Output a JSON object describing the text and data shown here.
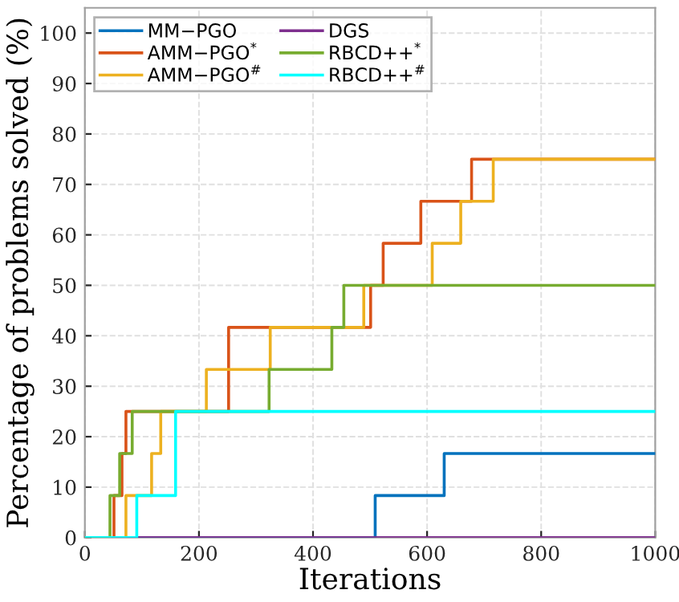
{
  "chart_data": {
    "type": "step",
    "xlabel": "Iterations",
    "ylabel": "Percentage of problems solved (%)",
    "xlim": [
      0,
      1000
    ],
    "ylim": [
      0,
      105
    ],
    "xticks": [
      0,
      200,
      400,
      600,
      800,
      1000
    ],
    "yticks": [
      0,
      10,
      20,
      30,
      40,
      50,
      60,
      70,
      80,
      90,
      100
    ],
    "grid": true,
    "legend": "top left",
    "line_style": "solid",
    "marker": "none",
    "series": [
      {
        "name": "MM−PGO",
        "color": "#0072bd",
        "x": [
          0,
          509,
          630,
          1000
        ],
        "values": [
          0,
          8.33,
          16.67,
          16.67
        ]
      },
      {
        "name": "AMM−PGO$^{*}$",
        "color": "#d95319",
        "x": [
          0,
          51,
          65,
          72,
          252,
          501,
          523,
          589,
          678,
          1000
        ],
        "values": [
          0,
          8.33,
          16.67,
          25,
          41.67,
          50,
          58.33,
          66.67,
          75,
          75
        ]
      },
      {
        "name": "AMM−PGO$^{#}$",
        "color": "#edb120",
        "x": [
          0,
          72,
          117,
          133,
          213,
          325,
          489,
          609,
          659,
          716,
          1000
        ],
        "values": [
          0,
          8.33,
          16.67,
          25,
          33.33,
          41.67,
          50,
          58.33,
          66.67,
          75,
          75
        ]
      },
      {
        "name": "DGS",
        "color": "#7e2f8e",
        "x": [
          0,
          1000
        ],
        "values": [
          0,
          0
        ]
      },
      {
        "name": "RBCD++$^{*}$",
        "color": "#77ac30",
        "x": [
          0,
          44,
          61,
          83,
          323,
          433,
          454,
          1000
        ],
        "values": [
          0,
          8.33,
          16.67,
          25,
          33.33,
          41.67,
          50,
          50
        ]
      },
      {
        "name": "RBCD++$^{#}$",
        "color": "#00ffff",
        "x": [
          0,
          91,
          159,
          1000
        ],
        "values": [
          0,
          8.33,
          25,
          25
        ]
      }
    ]
  }
}
